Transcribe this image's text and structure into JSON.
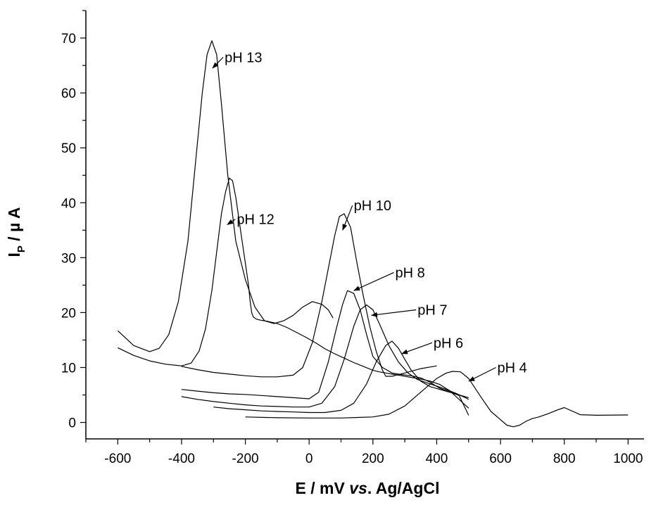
{
  "chart_data": {
    "type": "line",
    "xlabel": {
      "prefix": "E / mV ",
      "italic": "vs",
      "suffix": ". Ag/AgCl"
    },
    "ylabel": {
      "main": "I",
      "sub": "P",
      "suffix": " / µ A"
    },
    "xlim": [
      -700,
      1050
    ],
    "ylim": [
      -3,
      75
    ],
    "x_ticks": [
      -600,
      -400,
      -200,
      0,
      200,
      400,
      600,
      800,
      1000
    ],
    "y_ticks": [
      0,
      10,
      20,
      30,
      40,
      50,
      60,
      70
    ],
    "x_tick_labels": [
      "-600",
      "-400",
      "-200",
      "0",
      "200",
      "400",
      "600",
      "800",
      "1000"
    ],
    "y_tick_labels": [
      "0",
      "10",
      "20",
      "30",
      "40",
      "50",
      "60",
      "70"
    ],
    "grid": false,
    "series": [
      {
        "name": "pH 13",
        "x": [
          -600,
          -550,
          -500,
          -470,
          -440,
          -410,
          -380,
          -355,
          -335,
          -320,
          -305,
          -290,
          -275,
          -255,
          -230,
          -200,
          -170,
          -140,
          -110,
          -80,
          -50,
          -20,
          10,
          40,
          60,
          75
        ],
        "y": [
          16.7,
          14,
          12.9,
          13.5,
          16,
          22,
          33,
          48,
          60,
          67,
          69.5,
          67,
          58,
          45,
          33,
          26,
          21,
          18.5,
          18,
          18.5,
          19.5,
          21,
          22,
          21.5,
          20.5,
          19
        ]
      },
      {
        "name": "pH 12",
        "x": [
          -600,
          -550,
          -500,
          -450,
          -400,
          -370,
          -345,
          -325,
          -305,
          -290,
          -275,
          -262,
          -250,
          -240,
          -230,
          -220,
          -210,
          -200,
          -190,
          -185,
          -180,
          -175,
          -165,
          -150,
          -130,
          -100,
          -70,
          -40,
          -10,
          20,
          50,
          80,
          110,
          140,
          170,
          200,
          220,
          240,
          260,
          290,
          320,
          350,
          380,
          410,
          440,
          470,
          500
        ],
        "y": [
          13.6,
          12.2,
          11.2,
          10.6,
          10.3,
          10.8,
          13,
          17,
          24,
          31,
          38,
          42,
          44.5,
          44,
          41,
          37,
          33,
          29,
          25,
          22,
          20,
          19.2,
          18.8,
          18.6,
          18.4,
          18,
          17.3,
          16.4,
          15.5,
          14.5,
          13.4,
          12.5,
          11.7,
          10.9,
          10.2,
          9.5,
          9.2,
          9,
          8.8,
          8.5,
          8.2,
          7.9,
          7.5,
          6.9,
          5.8,
          4.2,
          2.6
        ]
      },
      {
        "name": "pH 10",
        "x": [
          -400,
          -350,
          -300,
          -250,
          -200,
          -150,
          -100,
          -50,
          -20,
          10,
          40,
          60,
          80,
          95,
          110,
          130,
          150,
          170,
          190,
          210,
          230,
          240,
          260,
          300,
          350,
          400
        ],
        "y": [
          10.2,
          9.6,
          9.1,
          8.8,
          8.5,
          8.3,
          8.3,
          8.6,
          10,
          14.5,
          22,
          28,
          34,
          37.5,
          38,
          35.5,
          29,
          23,
          17.5,
          13,
          9.5,
          8.4,
          8.4,
          9,
          9.8,
          10.3
        ]
      },
      {
        "name": "pH 8",
        "x": [
          -400,
          -350,
          -300,
          -250,
          -200,
          -150,
          -100,
          -50,
          0,
          30,
          60,
          85,
          105,
          120,
          140,
          160,
          180,
          200,
          230,
          260,
          290,
          320,
          350,
          380,
          410,
          440,
          470,
          500
        ],
        "y": [
          6,
          5.7,
          5.4,
          5.2,
          5.1,
          4.9,
          4.7,
          4.5,
          4.3,
          5.5,
          11,
          17,
          21.5,
          24,
          23.5,
          20.5,
          16,
          12,
          10,
          9,
          8.7,
          8.5,
          8.1,
          7.3,
          6.2,
          5.6,
          4.9,
          1.3
        ]
      },
      {
        "name": "pH 7",
        "x": [
          -400,
          -350,
          -300,
          -250,
          -200,
          -150,
          -100,
          -50,
          0,
          40,
          80,
          110,
          140,
          160,
          180,
          200,
          220,
          250,
          280,
          310,
          340,
          370,
          400,
          430,
          460,
          490,
          500
        ],
        "y": [
          4.7,
          4.2,
          3.8,
          3.5,
          3.2,
          3,
          2.9,
          2.8,
          2.8,
          3.5,
          6.5,
          11.5,
          17.5,
          20.5,
          21.4,
          20.5,
          18,
          14,
          11,
          9,
          7.8,
          7.2,
          6.6,
          6,
          5.3,
          4.5,
          4.2
        ]
      },
      {
        "name": "pH 6",
        "x": [
          -300,
          -250,
          -200,
          -150,
          -100,
          -50,
          0,
          50,
          100,
          140,
          180,
          210,
          240,
          260,
          280,
          300,
          320,
          350,
          380,
          410,
          440,
          470,
          500
        ],
        "y": [
          2.8,
          2.5,
          2.3,
          2.1,
          2,
          1.9,
          1.8,
          1.8,
          2.2,
          3.5,
          7,
          11,
          14,
          14.8,
          13.5,
          11.5,
          9.5,
          7.5,
          6.5,
          6,
          5.5,
          5,
          4.5
        ]
      },
      {
        "name": "pH 4",
        "x": [
          -200,
          -100,
          0,
          100,
          200,
          250,
          300,
          350,
          400,
          430,
          450,
          475,
          500,
          540,
          570,
          600,
          620,
          640,
          660,
          680,
          700,
          720,
          750,
          780,
          800,
          850,
          900,
          1000
        ],
        "y": [
          1,
          0.85,
          0.8,
          0.8,
          1,
          1.5,
          3,
          5.5,
          8,
          9,
          9.3,
          9.2,
          8,
          4.5,
          2,
          0.5,
          -0.5,
          -0.8,
          -0.5,
          0.2,
          0.7,
          1,
          1.6,
          2.3,
          2.7,
          1.4,
          1.3,
          1.35
        ]
      }
    ],
    "annotations": [
      {
        "text": "pH 13",
        "label_x": -265,
        "label_y": 66.5,
        "arrow_to_x": -303,
        "arrow_to_y": 64.5
      },
      {
        "text": "pH 12",
        "label_x": -227,
        "label_y": 37,
        "arrow_to_x": -257,
        "arrow_to_y": 36
      },
      {
        "text": "pH 10",
        "label_x": 140,
        "label_y": 39.5,
        "arrow_to_x": 105,
        "arrow_to_y": 35
      },
      {
        "text": "pH 8",
        "label_x": 270,
        "label_y": 27.3,
        "arrow_to_x": 140,
        "arrow_to_y": 24
      },
      {
        "text": "pH 7",
        "label_x": 340,
        "label_y": 20.5,
        "arrow_to_x": 195,
        "arrow_to_y": 19.5
      },
      {
        "text": "pH 6",
        "label_x": 390,
        "label_y": 14.5,
        "arrow_to_x": 290,
        "arrow_to_y": 12.5
      },
      {
        "text": "pH 4",
        "label_x": 590,
        "label_y": 10,
        "arrow_to_x": 500,
        "arrow_to_y": 7.5
      }
    ]
  }
}
